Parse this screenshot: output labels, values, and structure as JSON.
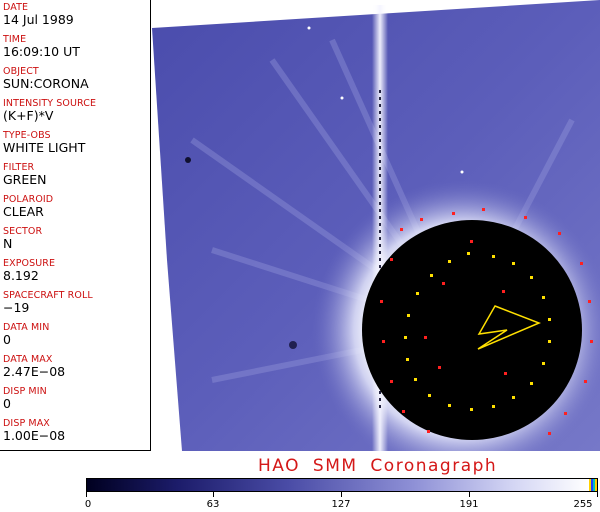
{
  "metadata": [
    {
      "label": "DATE",
      "value": "14 Jul 1989"
    },
    {
      "label": "TIME",
      "value": "16:09:10 UT"
    },
    {
      "label": "OBJECT",
      "value": "SUN:CORONA"
    },
    {
      "label": "INTENSITY SOURCE",
      "value": "(K+F)*V"
    },
    {
      "label": "TYPE-OBS",
      "value": "WHITE LIGHT"
    },
    {
      "label": "FILTER",
      "value": "GREEN"
    },
    {
      "label": "POLAROID",
      "value": "CLEAR"
    },
    {
      "label": "SECTOR",
      "value": "N"
    },
    {
      "label": "EXPOSURE",
      "value": "8.192"
    },
    {
      "label": "SPACECRAFT ROLL",
      "value": "−19"
    },
    {
      "label": "DATA MIN",
      "value": "0"
    },
    {
      "label": "DATA MAX",
      "value": "2.47E−08"
    },
    {
      "label": "DISP MIN",
      "value": "0"
    },
    {
      "label": "DISP MAX",
      "value": "1.00E−08"
    }
  ],
  "instrument_title": "HAO   SMM Coronagraph",
  "colorbar": {
    "ticks": [
      "0",
      "63",
      "127",
      "191",
      "255"
    ],
    "range": [
      0,
      255
    ]
  },
  "colors": {
    "label_red": "#cc1010",
    "corona_blue": "#5a5cb4",
    "occulter_black": "#000000",
    "marker_yellow": "#ffe000",
    "marker_red": "#ff2020"
  }
}
